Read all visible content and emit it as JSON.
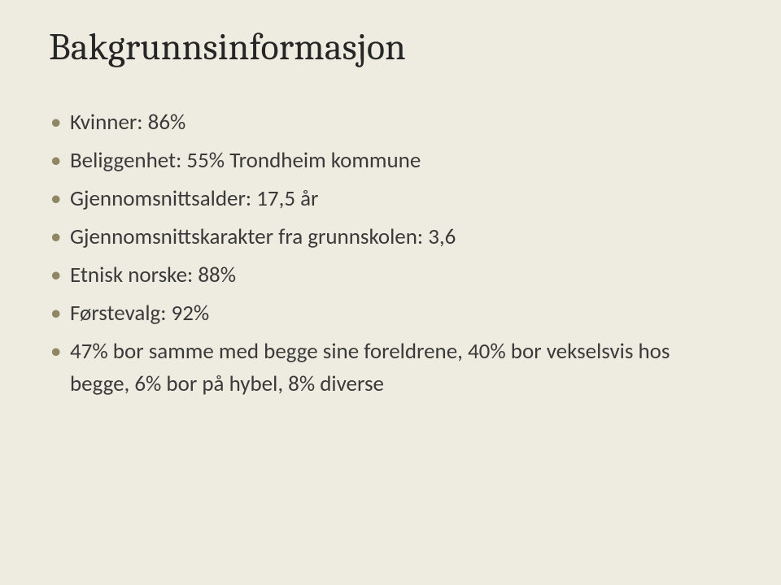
{
  "background_color": "#eeece0",
  "title_color": "#262626",
  "bullet_color": "#8f8664",
  "text_color": "#3a3a3a",
  "title_fontsize": 46,
  "bullet_fontsize": 27,
  "title": "Bakgrunnsinformasjon",
  "bullets": [
    "Kvinner: 86%",
    "Beliggenhet: 55% Trondheim kommune",
    "Gjennomsnittsalder: 17,5 år",
    "Gjennomsnittskarakter fra grunnskolen: 3,6",
    "Etnisk norske: 88%",
    "Førstevalg: 92%",
    "47% bor samme med begge sine foreldrene, 40% bor vekselsvis hos begge, 6% bor på hybel, 8% diverse"
  ]
}
